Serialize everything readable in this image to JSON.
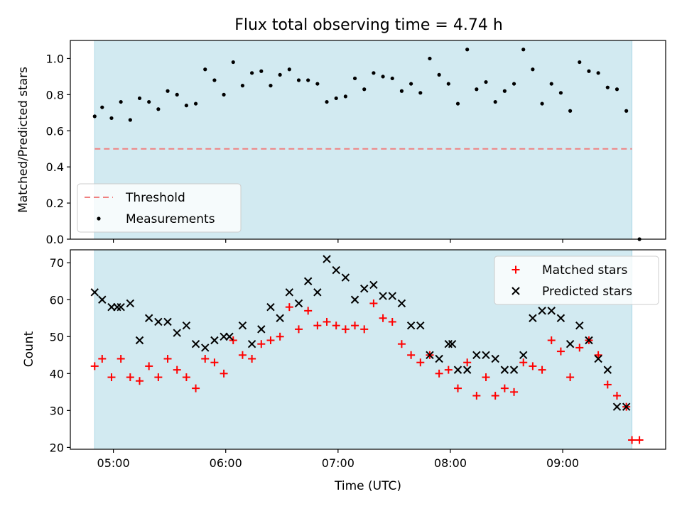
{
  "colors": {
    "shade": "#add8e6",
    "threshold": "#f08080",
    "measurement": "#000000",
    "matched": "#ff0000",
    "predicted": "#000000"
  },
  "chart_data": [
    {
      "type": "scatter",
      "title": "Flux total observing time = 4.74 h",
      "xlabel": "",
      "ylabel": "Matched/Predicted stars",
      "xlim": [
        "04:37",
        "09:55"
      ],
      "ylim": [
        0,
        1.1
      ],
      "yticks": [
        "0.0",
        "0.2",
        "0.4",
        "0.6",
        "0.8",
        "1.0"
      ],
      "xticks": [
        "05:00",
        "06:00",
        "07:00",
        "08:00",
        "09:00"
      ],
      "shaded_span": [
        "04:50",
        "09:37"
      ],
      "legend_position": "lower-left",
      "threshold": {
        "name": "Threshold",
        "y": 0.5,
        "x_range": [
          "04:50",
          "09:37"
        ],
        "style": "dashed"
      },
      "series": [
        {
          "name": "Measurements",
          "marker": "dot",
          "x": [
            "04:50",
            "04:54",
            "04:59",
            "05:04",
            "05:09",
            "05:14",
            "05:19",
            "05:24",
            "05:29",
            "05:34",
            "05:39",
            "05:44",
            "05:49",
            "05:54",
            "05:59",
            "06:04",
            "06:09",
            "06:14",
            "06:19",
            "06:24",
            "06:29",
            "06:34",
            "06:39",
            "06:44",
            "06:49",
            "06:54",
            "06:59",
            "07:04",
            "07:09",
            "07:14",
            "07:19",
            "07:24",
            "07:29",
            "07:34",
            "07:39",
            "07:44",
            "07:49",
            "07:54",
            "07:59",
            "08:04",
            "08:09",
            "08:14",
            "08:19",
            "08:24",
            "08:29",
            "08:34",
            "08:39",
            "08:44",
            "08:49",
            "08:54",
            "08:59",
            "09:04",
            "09:09",
            "09:14",
            "09:19",
            "09:24",
            "09:29",
            "09:34",
            "09:41"
          ],
          "y": [
            0.68,
            0.73,
            0.67,
            0.76,
            0.66,
            0.78,
            0.76,
            0.72,
            0.82,
            0.8,
            0.74,
            0.75,
            0.94,
            0.88,
            0.8,
            0.98,
            0.85,
            0.92,
            0.93,
            0.85,
            0.91,
            0.94,
            0.88,
            0.88,
            0.86,
            0.76,
            0.78,
            0.79,
            0.89,
            0.83,
            0.92,
            0.9,
            0.89,
            0.82,
            0.86,
            0.81,
            1.0,
            0.91,
            0.86,
            0.75,
            1.05,
            0.83,
            0.87,
            0.76,
            0.82,
            0.86,
            1.05,
            0.94,
            0.75,
            0.86,
            0.81,
            0.71,
            0.98,
            0.93,
            0.92,
            0.84,
            0.83,
            0.71,
            0.0
          ]
        }
      ]
    },
    {
      "type": "scatter",
      "title": "",
      "xlabel": "Time (UTC)",
      "ylabel": "Count",
      "xlim": [
        "04:37",
        "09:55"
      ],
      "ylim": [
        19.5,
        73.5
      ],
      "yticks": [
        "20",
        "30",
        "40",
        "50",
        "60",
        "70"
      ],
      "xticks": [
        "05:00",
        "06:00",
        "07:00",
        "08:00",
        "09:00"
      ],
      "shaded_span": [
        "04:50",
        "09:37"
      ],
      "legend_position": "upper-right",
      "series": [
        {
          "name": "Matched stars",
          "marker": "plus",
          "x": [
            "04:50",
            "04:54",
            "04:59",
            "05:04",
            "05:09",
            "05:14",
            "05:19",
            "05:24",
            "05:29",
            "05:34",
            "05:39",
            "05:44",
            "05:49",
            "05:54",
            "05:59",
            "06:04",
            "06:09",
            "06:14",
            "06:19",
            "06:24",
            "06:29",
            "06:34",
            "06:39",
            "06:44",
            "06:49",
            "06:54",
            "06:59",
            "07:04",
            "07:09",
            "07:14",
            "07:19",
            "07:24",
            "07:29",
            "07:34",
            "07:39",
            "07:44",
            "07:49",
            "07:54",
            "07:59",
            "08:04",
            "08:09",
            "08:14",
            "08:19",
            "08:24",
            "08:29",
            "08:34",
            "08:39",
            "08:44",
            "08:49",
            "08:54",
            "08:59",
            "09:04",
            "09:09",
            "09:14",
            "09:19",
            "09:24",
            "09:29",
            "09:34",
            "09:37",
            "09:41"
          ],
          "y": [
            42,
            44,
            39,
            44,
            39,
            38,
            42,
            39,
            44,
            41,
            39,
            36,
            44,
            43,
            40,
            49,
            45,
            44,
            48,
            49,
            50,
            58,
            52,
            57,
            53,
            54,
            53,
            52,
            53,
            52,
            59,
            55,
            54,
            48,
            45,
            43,
            45,
            40,
            41,
            36,
            43,
            34,
            39,
            34,
            36,
            35,
            43,
            42,
            41,
            49,
            46,
            39,
            47,
            49,
            45,
            37,
            34,
            31,
            22,
            22
          ]
        },
        {
          "name": "Predicted stars",
          "marker": "x",
          "x": [
            "04:50",
            "04:54",
            "04:59",
            "05:02",
            "05:04",
            "05:09",
            "05:14",
            "05:19",
            "05:24",
            "05:29",
            "05:34",
            "05:39",
            "05:44",
            "05:49",
            "05:54",
            "05:59",
            "06:02",
            "06:09",
            "06:14",
            "06:19",
            "06:24",
            "06:29",
            "06:34",
            "06:39",
            "06:44",
            "06:49",
            "06:54",
            "06:59",
            "07:04",
            "07:09",
            "07:14",
            "07:19",
            "07:24",
            "07:29",
            "07:34",
            "07:39",
            "07:44",
            "07:49",
            "07:54",
            "07:59",
            "08:01",
            "08:04",
            "08:09",
            "08:14",
            "08:19",
            "08:24",
            "08:29",
            "08:34",
            "08:39",
            "08:44",
            "08:49",
            "08:54",
            "08:59",
            "09:04",
            "09:09",
            "09:14",
            "09:19",
            "09:24",
            "09:29",
            "09:34"
          ],
          "y": [
            62,
            60,
            58,
            58,
            58,
            59,
            49,
            55,
            54,
            54,
            51,
            53,
            48,
            47,
            49,
            50,
            50,
            53,
            48,
            52,
            58,
            55,
            62,
            59,
            65,
            62,
            71,
            68,
            66,
            60,
            63,
            64,
            61,
            61,
            59,
            53,
            53,
            45,
            44,
            48,
            48,
            41,
            41,
            45,
            45,
            44,
            41,
            41,
            45,
            55,
            57,
            57,
            55,
            48,
            53,
            49,
            44,
            41,
            31,
            31
          ]
        }
      ]
    }
  ]
}
